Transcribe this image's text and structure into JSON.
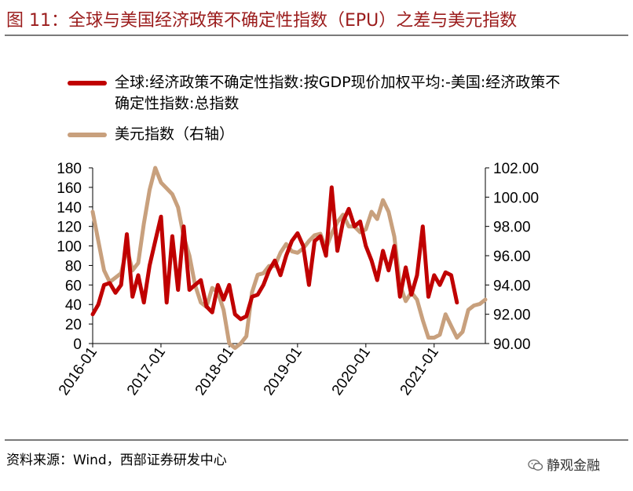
{
  "header": {
    "title": "图 11：全球与美国经济政策不确定性指数（EPU）之差与美元指数"
  },
  "footer": {
    "source": "资料来源：Wind，西部证券研发中心",
    "watermark": "静观金融"
  },
  "chart_data": {
    "type": "line",
    "title": "图 11：全球与美国经济政策不确定性指数（EPU）之差与美元指数",
    "legend_placement": "top",
    "grid": false,
    "x_tick_labels": [
      "2016-01",
      "2017-01",
      "2018-01",
      "2019-01",
      "2020-01",
      "2021-01"
    ],
    "x_range": [
      "2016-01",
      "2021-10"
    ],
    "y_left": {
      "range": [
        0,
        180
      ],
      "ticks": [
        "0",
        "20",
        "40",
        "60",
        "80",
        "100",
        "120",
        "140",
        "160",
        "180"
      ]
    },
    "y_right": {
      "range": [
        90,
        102
      ],
      "ticks": [
        "90.00",
        "92.00",
        "94.00",
        "96.00",
        "98.00",
        "100.00",
        "102.00"
      ]
    },
    "series": [
      {
        "name": "全球:经济政策不确定性指数:按GDP现价加权平均:-美国:经济政策不确定性指数:总指数",
        "axis": "left",
        "color": "#c00000",
        "points": [
          [
            "2016-01",
            30
          ],
          [
            "2016-02",
            40
          ],
          [
            "2016-03",
            60
          ],
          [
            "2016-04",
            62
          ],
          [
            "2016-05",
            52
          ],
          [
            "2016-06",
            60
          ],
          [
            "2016-07",
            112
          ],
          [
            "2016-08",
            48
          ],
          [
            "2016-09",
            70
          ],
          [
            "2016-10",
            42
          ],
          [
            "2016-11",
            80
          ],
          [
            "2016-12",
            105
          ],
          [
            "2017-01",
            130
          ],
          [
            "2017-02",
            42
          ],
          [
            "2017-03",
            110
          ],
          [
            "2017-04",
            55
          ],
          [
            "2017-05",
            120
          ],
          [
            "2017-06",
            55
          ],
          [
            "2017-07",
            60
          ],
          [
            "2017-08",
            65
          ],
          [
            "2017-09",
            38
          ],
          [
            "2017-10",
            32
          ],
          [
            "2017-11",
            60
          ],
          [
            "2017-12",
            45
          ],
          [
            "2018-01",
            60
          ],
          [
            "2018-02",
            30
          ],
          [
            "2018-03",
            25
          ],
          [
            "2018-04",
            28
          ],
          [
            "2018-05",
            48
          ],
          [
            "2018-06",
            50
          ],
          [
            "2018-07",
            60
          ],
          [
            "2018-08",
            75
          ],
          [
            "2018-09",
            85
          ],
          [
            "2018-10",
            70
          ],
          [
            "2018-11",
            90
          ],
          [
            "2018-12",
            105
          ],
          [
            "2019-01",
            113
          ],
          [
            "2019-02",
            100
          ],
          [
            "2019-03",
            60
          ],
          [
            "2019-04",
            105
          ],
          [
            "2019-05",
            110
          ],
          [
            "2019-06",
            90
          ],
          [
            "2019-07",
            160
          ],
          [
            "2019-08",
            95
          ],
          [
            "2019-09",
            125
          ],
          [
            "2019-10",
            138
          ],
          [
            "2019-11",
            120
          ],
          [
            "2019-12",
            125
          ],
          [
            "2020-01",
            100
          ],
          [
            "2020-02",
            85
          ],
          [
            "2020-03",
            65
          ],
          [
            "2020-04",
            95
          ],
          [
            "2020-05",
            75
          ],
          [
            "2020-06",
            100
          ],
          [
            "2020-07",
            48
          ],
          [
            "2020-08",
            78
          ],
          [
            "2020-09",
            50
          ],
          [
            "2020-10",
            70
          ],
          [
            "2020-11",
            120
          ],
          [
            "2020-12",
            48
          ],
          [
            "2021-01",
            70
          ],
          [
            "2021-02",
            60
          ],
          [
            "2021-03",
            73
          ],
          [
            "2021-04",
            70
          ],
          [
            "2021-05",
            42
          ]
        ]
      },
      {
        "name": "美元指数（右轴）",
        "axis": "right",
        "color": "#c8a07d",
        "points": [
          [
            "2016-01",
            99
          ],
          [
            "2016-02",
            97
          ],
          [
            "2016-03",
            95
          ],
          [
            "2016-04",
            94.2
          ],
          [
            "2016-05",
            94.5
          ],
          [
            "2016-06",
            94.8
          ],
          [
            "2016-07",
            96.5
          ],
          [
            "2016-08",
            95
          ],
          [
            "2016-09",
            95.5
          ],
          [
            "2016-10",
            98.2
          ],
          [
            "2016-11",
            100.5
          ],
          [
            "2016-12",
            102
          ],
          [
            "2017-01",
            101
          ],
          [
            "2017-02",
            100.6
          ],
          [
            "2017-03",
            100.2
          ],
          [
            "2017-04",
            99.3
          ],
          [
            "2017-05",
            97.3
          ],
          [
            "2017-06",
            96
          ],
          [
            "2017-07",
            94
          ],
          [
            "2017-08",
            92.8
          ],
          [
            "2017-09",
            92.5
          ],
          [
            "2017-10",
            93.8
          ],
          [
            "2017-11",
            93.5
          ],
          [
            "2017-12",
            92.3
          ],
          [
            "2018-01",
            90
          ],
          [
            "2018-02",
            89.7
          ],
          [
            "2018-03",
            90
          ],
          [
            "2018-04",
            90.5
          ],
          [
            "2018-05",
            93.5
          ],
          [
            "2018-06",
            94.7
          ],
          [
            "2018-07",
            94.8
          ],
          [
            "2018-08",
            95.3
          ],
          [
            "2018-09",
            95.3
          ],
          [
            "2018-10",
            96.2
          ],
          [
            "2018-11",
            96.8
          ],
          [
            "2018-12",
            96.3
          ],
          [
            "2019-01",
            96.2
          ],
          [
            "2019-02",
            96.5
          ],
          [
            "2019-03",
            97
          ],
          [
            "2019-04",
            97.4
          ],
          [
            "2019-05",
            97.5
          ],
          [
            "2019-06",
            96.5
          ],
          [
            "2019-07",
            97.5
          ],
          [
            "2019-08",
            98.3
          ],
          [
            "2019-09",
            98.8
          ],
          [
            "2019-10",
            98
          ],
          [
            "2019-11",
            98
          ],
          [
            "2019-12",
            97.6
          ],
          [
            "2020-01",
            97.8
          ],
          [
            "2020-02",
            99
          ],
          [
            "2020-03",
            98.5
          ],
          [
            "2020-04",
            99.8
          ],
          [
            "2020-05",
            99
          ],
          [
            "2020-06",
            97.3
          ],
          [
            "2020-07",
            94
          ],
          [
            "2020-08",
            92.9
          ],
          [
            "2020-09",
            93.5
          ],
          [
            "2020-10",
            93
          ],
          [
            "2020-11",
            91.6
          ],
          [
            "2020-12",
            90.4
          ],
          [
            "2021-01",
            90.4
          ],
          [
            "2021-02",
            90.6
          ],
          [
            "2021-03",
            92
          ],
          [
            "2021-04",
            91.2
          ],
          [
            "2021-05",
            90.4
          ],
          [
            "2021-06",
            90.8
          ],
          [
            "2021-07",
            92.3
          ],
          [
            "2021-08",
            92.6
          ],
          [
            "2021-09",
            92.7
          ],
          [
            "2021-10",
            93
          ]
        ]
      }
    ]
  }
}
